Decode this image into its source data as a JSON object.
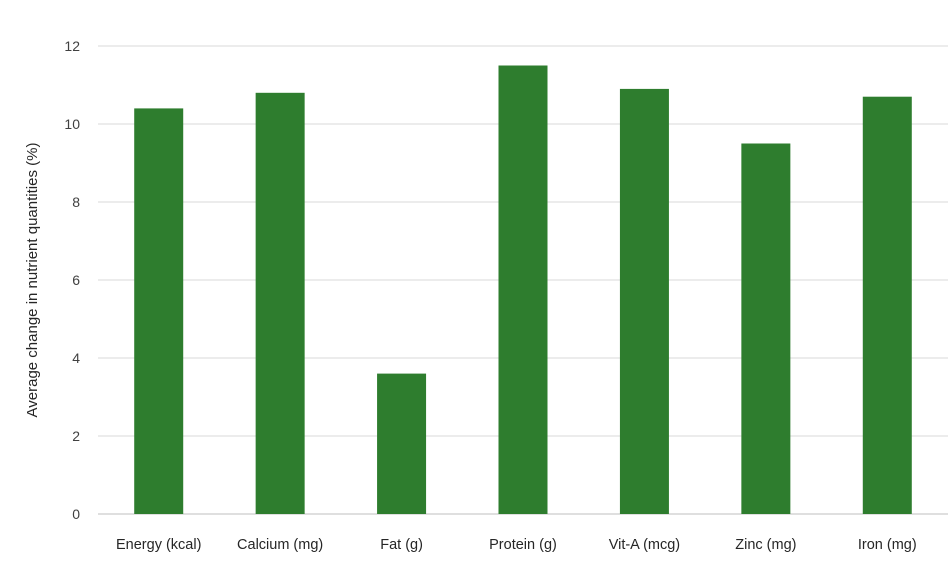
{
  "chart_data": {
    "type": "bar",
    "title": "",
    "xlabel": "",
    "ylabel": "Average change in nutrient quantities (%)",
    "categories": [
      "Energy (kcal)",
      "Calcium (mg)",
      "Fat (g)",
      "Protein (g)",
      "Vit-A (mcg)",
      "Zinc (mg)",
      "Iron (mg)"
    ],
    "values": [
      10.4,
      10.8,
      3.6,
      11.5,
      10.9,
      9.5,
      10.7
    ],
    "ylim": [
      0,
      12
    ],
    "yticks": [
      0,
      2,
      4,
      6,
      8,
      10,
      12
    ],
    "grid": true,
    "legend": "none",
    "bar_color": "#2e7d2e"
  }
}
